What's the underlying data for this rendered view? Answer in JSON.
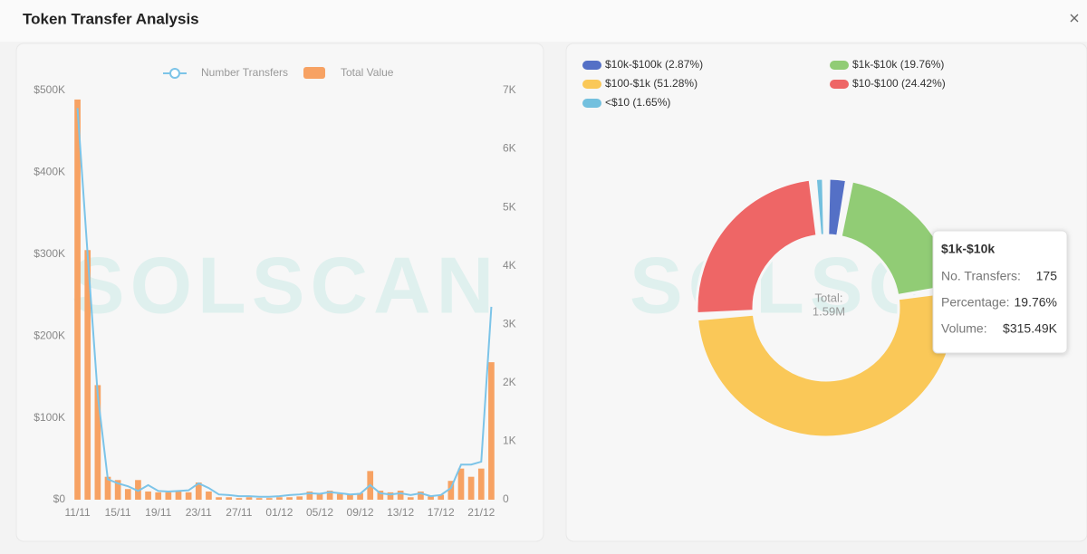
{
  "header": {
    "title": "Token Transfer Analysis"
  },
  "chart_data": [
    {
      "type": "bar",
      "watermark": "SOLSCAN",
      "grid": false,
      "categories": [
        "11/11",
        null,
        null,
        null,
        "15/11",
        null,
        null,
        null,
        "19/11",
        null,
        null,
        null,
        "23/11",
        null,
        null,
        null,
        "27/11",
        null,
        null,
        null,
        "01/12",
        null,
        null,
        null,
        "05/12",
        null,
        null,
        null,
        "09/12",
        null,
        null,
        null,
        "13/12",
        null,
        null,
        null,
        "17/12",
        null,
        null,
        null,
        "21/12",
        null
      ],
      "series": [
        {
          "name": "Number Transfers",
          "type": "line",
          "axis": "y2",
          "color": "#7cc4e8",
          "values": [
            6700,
            4200,
            1800,
            350,
            280,
            230,
            150,
            250,
            150,
            140,
            150,
            160,
            280,
            200,
            90,
            80,
            60,
            60,
            50,
            50,
            60,
            80,
            90,
            110,
            100,
            130,
            110,
            90,
            100,
            250,
            110,
            90,
            110,
            80,
            110,
            60,
            80,
            200,
            600,
            600,
            650,
            3300
          ]
        },
        {
          "name": "Total Value",
          "type": "bar",
          "color": "#f7a263",
          "values": [
            489000,
            305000,
            140000,
            28000,
            24000,
            13000,
            24000,
            10000,
            9000,
            9000,
            10000,
            9000,
            21000,
            10000,
            3000,
            3000,
            2000,
            3000,
            2000,
            2000,
            3000,
            3000,
            4000,
            10000,
            7000,
            11000,
            7000,
            7000,
            8000,
            35000,
            11000,
            9000,
            11000,
            3000,
            10000,
            4000,
            6000,
            23000,
            38000,
            28000,
            38000,
            168000
          ]
        }
      ],
      "ylim": [
        0,
        500000
      ],
      "yticks": [
        {
          "value": 0,
          "label": "$0"
        },
        {
          "value": 100000,
          "label": "$100K"
        },
        {
          "value": 200000,
          "label": "$200K"
        },
        {
          "value": 300000,
          "label": "$300K"
        },
        {
          "value": 400000,
          "label": "$400K"
        },
        {
          "value": 500000,
          "label": "$500K"
        }
      ],
      "y2lim": [
        0,
        7000
      ],
      "y2ticks": [
        0,
        {
          "value": 1000,
          "label": "1K"
        },
        {
          "value": 2000,
          "label": "2K"
        },
        {
          "value": 3000,
          "label": "3K"
        },
        {
          "value": 4000,
          "label": "4K"
        },
        {
          "value": 5000,
          "label": "5K"
        },
        {
          "value": 6000,
          "label": "6K"
        },
        {
          "value": 7000,
          "label": "7K"
        }
      ]
    },
    {
      "type": "pie",
      "donut": true,
      "watermark": "SOLSCAN",
      "labels": [
        "$10k-$100k (2.87%)",
        "$1k-$10k (19.76%)",
        "$100-$1k (51.28%)",
        "$10-$100 (24.42%)",
        "<$10 (1.65%)"
      ],
      "values": [
        2.87,
        19.76,
        51.28,
        24.42,
        1.65
      ],
      "colors": [
        "#5470c6",
        "#91cc75",
        "#fac858",
        "#ee6666",
        "#73c0de"
      ],
      "center_label": "Total:",
      "center_value": "1.59M",
      "tooltip": {
        "title": "$1k-$10k",
        "rows": [
          {
            "label": "No. Transfers:",
            "value": "175"
          },
          {
            "label": "Percentage:",
            "value": "19.76%"
          },
          {
            "label": "Volume:",
            "value": "$315.49K"
          }
        ]
      }
    }
  ]
}
